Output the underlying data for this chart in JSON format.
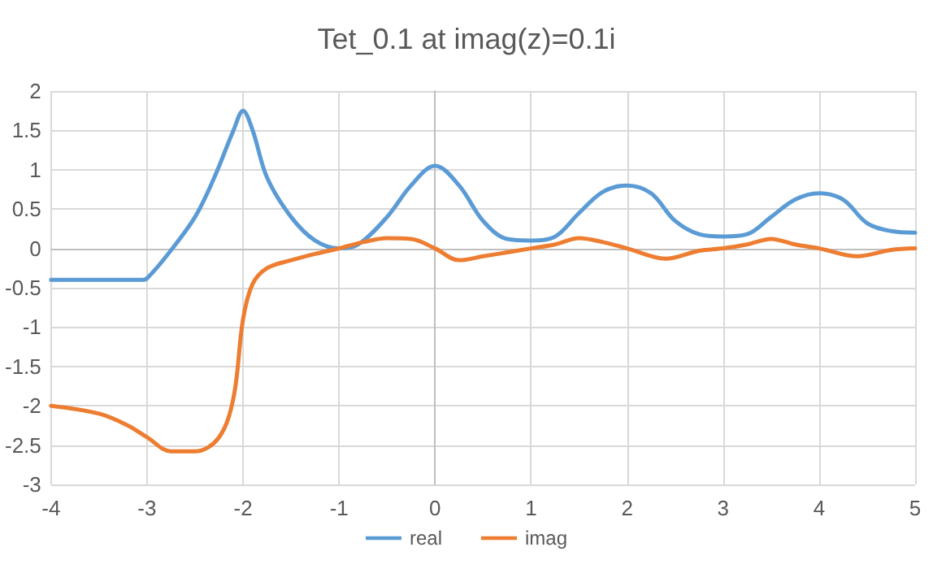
{
  "chart_data": {
    "type": "line",
    "title": "Tet_0.1 at imag(z)=0.1i",
    "x": [
      -4,
      -3.5,
      -3.05,
      -3,
      -2.8,
      -2.5,
      -2.3,
      -2.1,
      -2,
      -1.9,
      -1.75,
      -1.5,
      -1.25,
      -1,
      -0.8,
      -0.5,
      -0.25,
      0,
      0.25,
      0.5,
      0.75,
      1,
      1.25,
      1.5,
      1.75,
      2,
      2.25,
      2.5,
      2.75,
      3,
      3.25,
      3.5,
      3.75,
      4,
      4.25,
      4.5,
      4.75,
      5
    ],
    "series": [
      {
        "name": "real",
        "color": "#5b9bd5",
        "values": [
          -0.4,
          -0.4,
          -0.4,
          -0.38,
          -0.1,
          0.4,
          0.9,
          1.5,
          1.75,
          1.5,
          0.9,
          0.4,
          0.1,
          0.0,
          0.05,
          0.4,
          0.8,
          1.05,
          0.8,
          0.35,
          0.12,
          0.1,
          0.15,
          0.45,
          0.72,
          0.8,
          0.7,
          0.35,
          0.18,
          0.15,
          0.18,
          0.4,
          0.62,
          0.7,
          0.62,
          0.32,
          0.22,
          0.2
        ]
      },
      {
        "name": "imag",
        "color": "#ed7d31",
        "x": [
          -4,
          -3.5,
          -3.2,
          -3,
          -2.75,
          -2.5,
          -2.25,
          -2.1,
          -2,
          -1.9,
          -1.75,
          -1.5,
          -1.25,
          -1,
          -0.75,
          -0.5,
          -0.25,
          0,
          0.25,
          0.5,
          0.75,
          1,
          1.25,
          1.5,
          1.75,
          2,
          2.4,
          2.75,
          3,
          3.25,
          3.5,
          3.75,
          4,
          4.4,
          4.75,
          5
        ],
        "values": [
          -2.0,
          -2.1,
          -2.25,
          -2.4,
          -2.58,
          -2.58,
          -2.4,
          -1.9,
          -0.9,
          -0.45,
          -0.25,
          -0.15,
          -0.07,
          0.0,
          0.08,
          0.13,
          0.12,
          0.0,
          -0.15,
          -0.1,
          -0.05,
          0.0,
          0.05,
          0.13,
          0.08,
          0.0,
          -0.13,
          -0.03,
          0.0,
          0.05,
          0.12,
          0.05,
          0.0,
          -0.1,
          -0.02,
          0.0
        ]
      }
    ],
    "xlim": [
      -4,
      5
    ],
    "xticks": [
      -4,
      -3,
      -2,
      -1,
      0,
      1,
      2,
      3,
      4,
      5
    ],
    "ylim": [
      -3,
      2
    ],
    "yticks": [
      -3,
      -2.5,
      -2,
      -1.5,
      -1,
      -0.5,
      0,
      0.5,
      1,
      1.5,
      2
    ],
    "grid": true,
    "legend": "bottom",
    "marker": "none",
    "line_style": "solid"
  }
}
